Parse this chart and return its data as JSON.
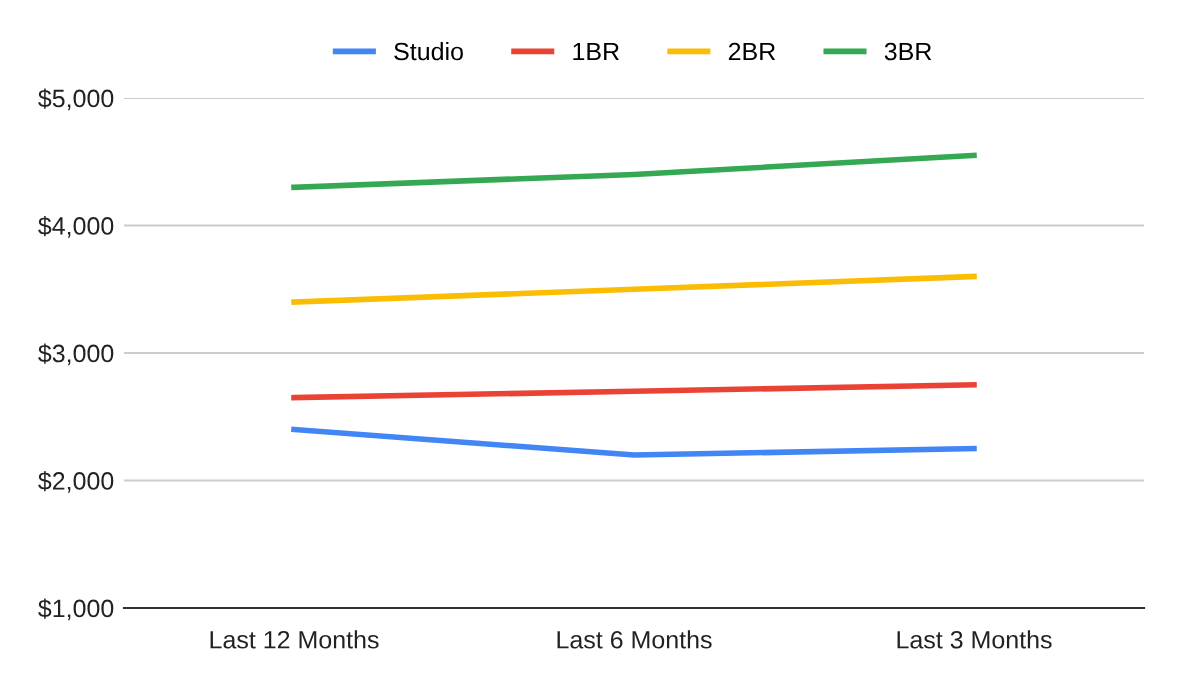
{
  "chart_data": {
    "type": "line",
    "categories": [
      "Last 12 Months",
      "Last 6 Months",
      "Last 3 Months"
    ],
    "series": [
      {
        "name": "Studio",
        "color": "#4285f4",
        "values": [
          2400,
          2200,
          2250
        ]
      },
      {
        "name": "1BR",
        "color": "#ea4335",
        "values": [
          2650,
          2700,
          2750
        ]
      },
      {
        "name": "2BR",
        "color": "#fbbc04",
        "values": [
          3400,
          3500,
          3600
        ]
      },
      {
        "name": "3BR",
        "color": "#34a853",
        "values": [
          4300,
          4400,
          4550
        ]
      }
    ],
    "ylim": [
      1000,
      5000
    ],
    "yticks": [
      {
        "value": 1000,
        "label": "$1,000"
      },
      {
        "value": 2000,
        "label": "$2,000"
      },
      {
        "value": 3000,
        "label": "$3,000"
      },
      {
        "value": 4000,
        "label": "$4,000"
      },
      {
        "value": 5000,
        "label": "$5,000"
      }
    ],
    "grid": "y",
    "legend": "top",
    "marker": "none",
    "line_style": "solid"
  }
}
